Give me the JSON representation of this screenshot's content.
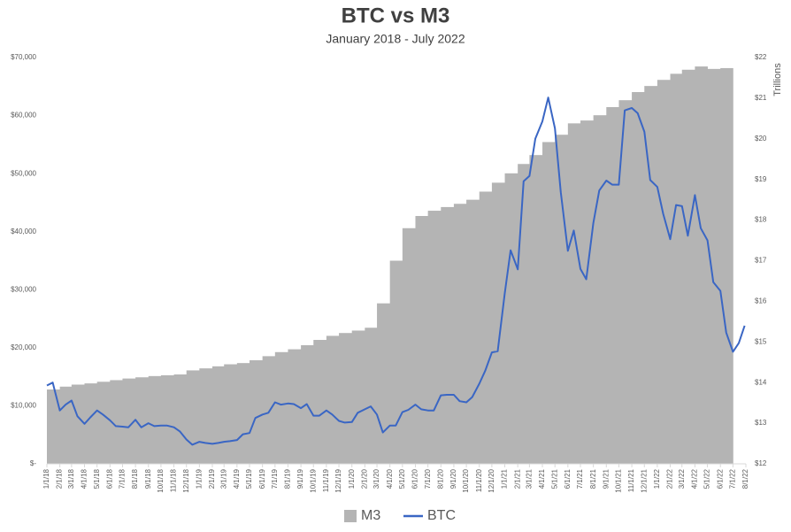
{
  "chart_data": {
    "type": "combo",
    "title": "BTC vs M3",
    "subtitle": "January 2018 - July 2022",
    "y2_label": "Trillions",
    "categories": [
      "1/1/18",
      "2/1/18",
      "3/1/18",
      "4/1/18",
      "5/1/18",
      "6/1/18",
      "7/1/18",
      "8/1/18",
      "9/1/18",
      "10/1/18",
      "11/1/18",
      "12/1/18",
      "1/1/19",
      "2/1/19",
      "3/1/19",
      "4/1/19",
      "5/1/19",
      "6/1/19",
      "7/1/19",
      "8/1/19",
      "9/1/19",
      "10/1/19",
      "11/1/19",
      "12/1/19",
      "1/1/20",
      "2/1/20",
      "3/1/20",
      "4/1/20",
      "5/1/20",
      "6/1/20",
      "7/1/20",
      "8/1/20",
      "9/1/20",
      "10/1/20",
      "11/1/20",
      "12/1/20",
      "1/1/21",
      "2/1/21",
      "3/1/21",
      "4/1/21",
      "5/1/21",
      "6/1/21",
      "7/1/21",
      "8/1/21",
      "9/1/21",
      "10/1/21",
      "11/1/21",
      "12/1/21",
      "1/1/22",
      "2/1/22",
      "3/1/22",
      "4/1/22",
      "5/1/22",
      "6/1/22",
      "7/1/22",
      "8/1/22"
    ],
    "series": [
      {
        "name": "M3",
        "type": "bar",
        "axis": "y2",
        "color": "#b4b4b4",
        "values": [
          13.83,
          13.9,
          13.95,
          13.98,
          14.02,
          14.06,
          14.1,
          14.13,
          14.16,
          14.18,
          14.2,
          14.3,
          14.35,
          14.4,
          14.45,
          14.48,
          14.55,
          14.65,
          14.75,
          14.82,
          14.92,
          15.05,
          15.15,
          15.22,
          15.28,
          15.35,
          15.95,
          17.0,
          17.8,
          18.1,
          18.23,
          18.32,
          18.4,
          18.5,
          18.7,
          18.92,
          19.15,
          19.38,
          19.6,
          19.92,
          20.1,
          20.38,
          20.45,
          20.58,
          20.78,
          20.95,
          21.15,
          21.3,
          21.45,
          21.6,
          21.7,
          21.78,
          21.72,
          21.74,
          null,
          null
        ]
      },
      {
        "name": "BTC",
        "type": "line",
        "axis": "y",
        "color": "#3a66c4",
        "x": [
          "1/1/18",
          "1/15/18",
          "2/1/18",
          "2/15/18",
          "3/1/18",
          "3/15/18",
          "4/1/18",
          "4/15/18",
          "5/1/18",
          "5/15/18",
          "6/1/18",
          "6/15/18",
          "7/1/18",
          "7/15/18",
          "8/1/18",
          "8/15/18",
          "9/1/18",
          "9/15/18",
          "10/1/18",
          "10/15/18",
          "11/1/18",
          "11/15/18",
          "12/1/18",
          "12/15/18",
          "1/1/19",
          "1/15/19",
          "2/1/19",
          "2/15/19",
          "3/1/19",
          "3/15/19",
          "4/1/19",
          "4/15/19",
          "5/1/19",
          "5/15/19",
          "6/1/19",
          "6/15/19",
          "7/1/19",
          "7/15/19",
          "8/1/19",
          "8/15/19",
          "9/1/19",
          "9/15/19",
          "10/1/19",
          "10/15/19",
          "11/1/19",
          "11/15/19",
          "12/1/19",
          "12/15/19",
          "1/1/20",
          "1/15/20",
          "2/1/20",
          "2/15/20",
          "3/1/20",
          "3/15/20",
          "4/1/20",
          "4/15/20",
          "5/1/20",
          "5/15/20",
          "6/1/20",
          "6/15/20",
          "7/1/20",
          "7/15/20",
          "8/1/20",
          "8/15/20",
          "9/1/20",
          "9/15/20",
          "10/1/20",
          "10/15/20",
          "11/1/20",
          "11/15/20",
          "12/1/20",
          "12/15/20",
          "1/1/21",
          "1/15/21",
          "2/1/21",
          "2/15/21",
          "3/1/21",
          "3/15/21",
          "4/1/21",
          "4/15/21",
          "5/1/21",
          "5/15/21",
          "6/1/21",
          "6/15/21",
          "7/1/21",
          "7/15/21",
          "8/1/21",
          "8/15/21",
          "9/1/21",
          "9/15/21",
          "10/1/21",
          "10/15/21",
          "11/1/21",
          "11/15/21",
          "12/1/21",
          "12/15/21",
          "1/1/22",
          "1/15/22",
          "2/1/22",
          "2/15/22",
          "3/1/22",
          "3/15/22",
          "4/1/22",
          "4/15/22",
          "5/1/22",
          "5/15/22",
          "6/1/22",
          "6/15/22",
          "7/1/22",
          "7/15/22",
          "7/29/22"
        ],
        "values": [
          13500,
          14000,
          9200,
          10200,
          10900,
          8200,
          6900,
          8000,
          9200,
          8500,
          7500,
          6500,
          6400,
          6300,
          7600,
          6300,
          7000,
          6500,
          6600,
          6600,
          6300,
          5600,
          4200,
          3300,
          3800,
          3600,
          3450,
          3600,
          3800,
          3900,
          4100,
          5100,
          5300,
          7900,
          8500,
          8800,
          10600,
          10200,
          10400,
          10300,
          9600,
          10300,
          8300,
          8300,
          9200,
          8500,
          7400,
          7100,
          7200,
          8800,
          9400,
          9900,
          8500,
          5400,
          6600,
          6600,
          8900,
          9300,
          10200,
          9400,
          9200,
          9200,
          11800,
          11900,
          11900,
          10800,
          10600,
          11500,
          13800,
          16000,
          19200,
          19400,
          29400,
          36800,
          33500,
          48700,
          49600,
          56000,
          59000,
          63100,
          57800,
          46800,
          36700,
          40200,
          33600,
          31800,
          41500,
          47100,
          48800,
          48100,
          48100,
          60900,
          61300,
          60400,
          57200,
          48900,
          47700,
          43100,
          38700,
          44600,
          44400,
          39300,
          46300,
          40600,
          38500,
          31300,
          29800,
          22600,
          19300,
          20800,
          23800
        ]
      }
    ],
    "ylim": [
      0,
      70000
    ],
    "yticks": [
      {
        "value": 0,
        "label": "$-"
      },
      {
        "value": 10000,
        "label": "$10,000"
      },
      {
        "value": 20000,
        "label": "$20,000"
      },
      {
        "value": 30000,
        "label": "$30,000"
      },
      {
        "value": 40000,
        "label": "$40,000"
      },
      {
        "value": 50000,
        "label": "$50,000"
      },
      {
        "value": 60000,
        "label": "$60,000"
      },
      {
        "value": 70000,
        "label": "$70,000"
      }
    ],
    "y2lim": [
      12,
      22
    ],
    "y2ticks": [
      {
        "value": 12,
        "label": "$12"
      },
      {
        "value": 13,
        "label": "$13"
      },
      {
        "value": 14,
        "label": "$14"
      },
      {
        "value": 15,
        "label": "$15"
      },
      {
        "value": 16,
        "label": "$16"
      },
      {
        "value": 17,
        "label": "$17"
      },
      {
        "value": 18,
        "label": "$18"
      },
      {
        "value": 19,
        "label": "$19"
      },
      {
        "value": 20,
        "label": "$20"
      },
      {
        "value": 21,
        "label": "$21"
      },
      {
        "value": 22,
        "label": "$22"
      }
    ],
    "legend": "bottom"
  }
}
